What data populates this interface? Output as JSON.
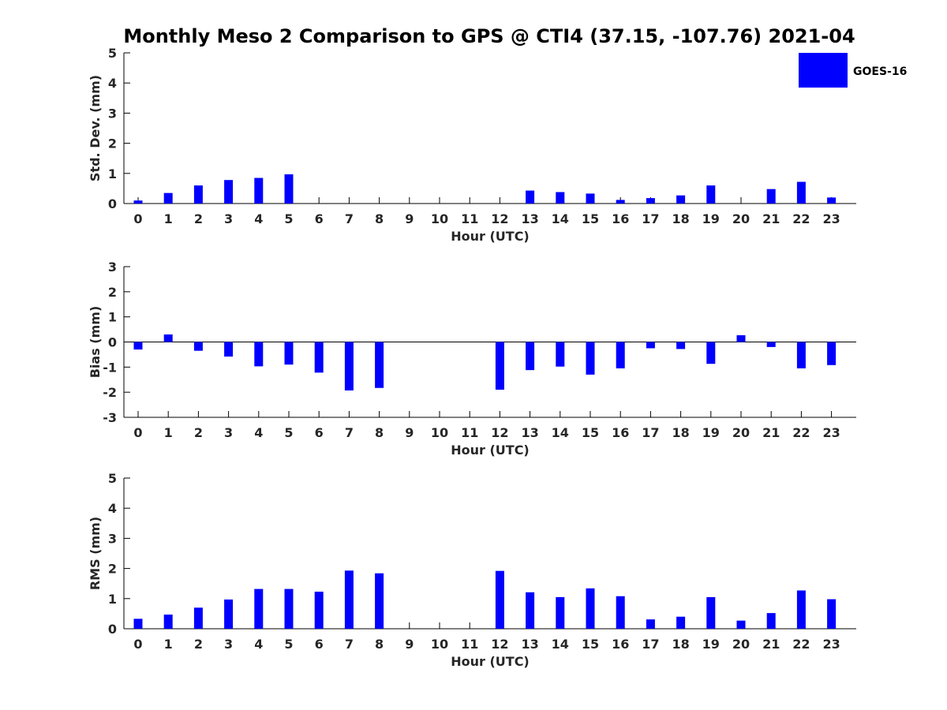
{
  "title": "Monthly Meso 2 Comparison to GPS @ CTI4 (37.15, -107.76) 2021-04",
  "legend": {
    "label": "GOES-16",
    "color": "#0000ff",
    "placement": "top-right"
  },
  "chart_data": [
    {
      "type": "bar",
      "xlabel": "Hour (UTC)",
      "ylabel": "Std. Dev. (mm)",
      "ylim": [
        0,
        5
      ],
      "yticks": [
        "0",
        "1",
        "2",
        "3",
        "4",
        "5"
      ],
      "categories": [
        "0",
        "1",
        "2",
        "3",
        "4",
        "5",
        "6",
        "7",
        "8",
        "9",
        "10",
        "11",
        "12",
        "13",
        "14",
        "15",
        "16",
        "17",
        "18",
        "19",
        "20",
        "21",
        "22",
        "23"
      ],
      "series": [
        {
          "name": "GOES-16",
          "color": "#0000ff",
          "values": [
            0.1,
            0.35,
            0.6,
            0.78,
            0.85,
            0.97,
            null,
            null,
            null,
            null,
            null,
            null,
            null,
            0.43,
            0.38,
            0.33,
            0.12,
            0.18,
            0.27,
            0.6,
            null,
            0.48,
            0.72,
            0.2
          ]
        }
      ]
    },
    {
      "type": "bar",
      "xlabel": "Hour (UTC)",
      "ylabel": "Bias (mm)",
      "ylim": [
        -3,
        3
      ],
      "yticks": [
        "-3",
        "-2",
        "-1",
        "0",
        "1",
        "2",
        "3"
      ],
      "categories": [
        "0",
        "1",
        "2",
        "3",
        "4",
        "5",
        "6",
        "7",
        "8",
        "9",
        "10",
        "11",
        "12",
        "13",
        "14",
        "15",
        "16",
        "17",
        "18",
        "19",
        "20",
        "21",
        "22",
        "23"
      ],
      "series": [
        {
          "name": "GOES-16",
          "color": "#0000ff",
          "values": [
            -0.3,
            0.3,
            -0.35,
            -0.58,
            -0.97,
            -0.9,
            -1.22,
            -1.93,
            -1.83,
            null,
            null,
            null,
            -1.9,
            -1.12,
            -0.98,
            -1.3,
            -1.05,
            -0.25,
            -0.28,
            -0.87,
            0.27,
            -0.2,
            -1.05,
            -0.92
          ]
        }
      ]
    },
    {
      "type": "bar",
      "xlabel": "Hour (UTC)",
      "ylabel": "RMS (mm)",
      "ylim": [
        0,
        5
      ],
      "yticks": [
        "0",
        "1",
        "2",
        "3",
        "4",
        "5"
      ],
      "categories": [
        "0",
        "1",
        "2",
        "3",
        "4",
        "5",
        "6",
        "7",
        "8",
        "9",
        "10",
        "11",
        "12",
        "13",
        "14",
        "15",
        "16",
        "17",
        "18",
        "19",
        "20",
        "21",
        "22",
        "23"
      ],
      "series": [
        {
          "name": "GOES-16",
          "color": "#0000ff",
          "values": [
            0.33,
            0.47,
            0.7,
            0.97,
            1.32,
            1.32,
            1.23,
            1.93,
            1.84,
            null,
            null,
            null,
            1.92,
            1.21,
            1.05,
            1.34,
            1.08,
            0.31,
            0.4,
            1.05,
            0.27,
            0.52,
            1.27,
            0.98
          ]
        }
      ]
    }
  ]
}
